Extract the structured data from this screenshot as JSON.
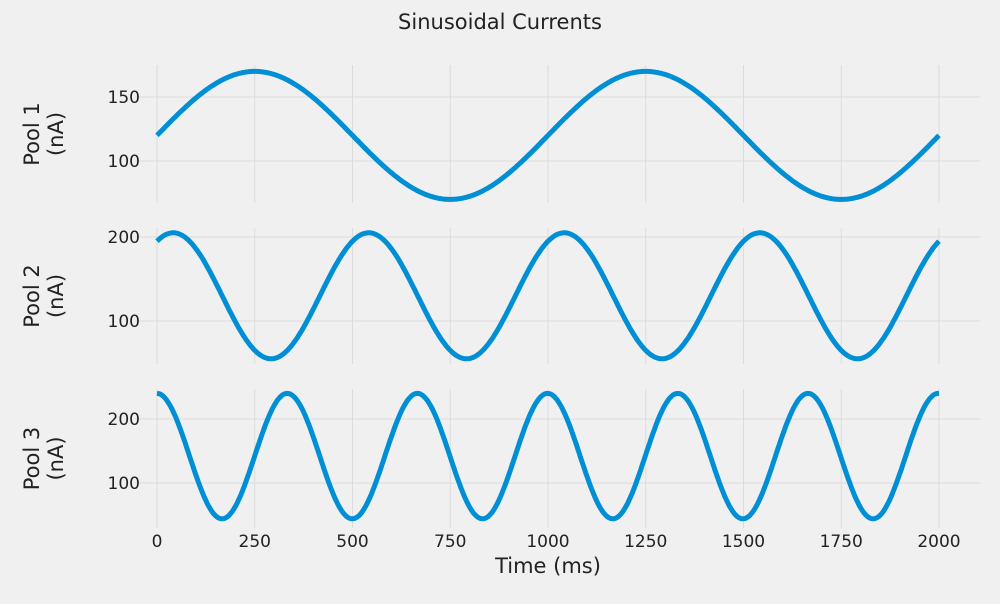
{
  "chart_data": {
    "type": "line",
    "title": "Sinusoidal Currents",
    "xlabel": "Time (ms)",
    "xlim": [
      0,
      2000
    ],
    "xticks": [
      0,
      250,
      500,
      750,
      1000,
      1250,
      1500,
      1750,
      2000
    ],
    "panels": [
      {
        "ylabel": "Pool 1\n(nA)",
        "yticks": [
          100,
          150
        ],
        "offset": 120,
        "amplitude": 50,
        "period_ms": 1000,
        "phase_deg": 0,
        "color": "#008fd5"
      },
      {
        "ylabel": "Pool 2\n(nA)",
        "yticks": [
          100,
          200
        ],
        "offset": 130,
        "amplitude": 75,
        "period_ms": 500,
        "phase_deg": 60,
        "color": "#008fd5"
      },
      {
        "ylabel": "Pool 3\n(nA)",
        "yticks": [
          100,
          200
        ],
        "offset": 142,
        "amplitude": 98,
        "period_ms": 333,
        "phase_deg": 90,
        "color": "#008fd5"
      }
    ]
  }
}
